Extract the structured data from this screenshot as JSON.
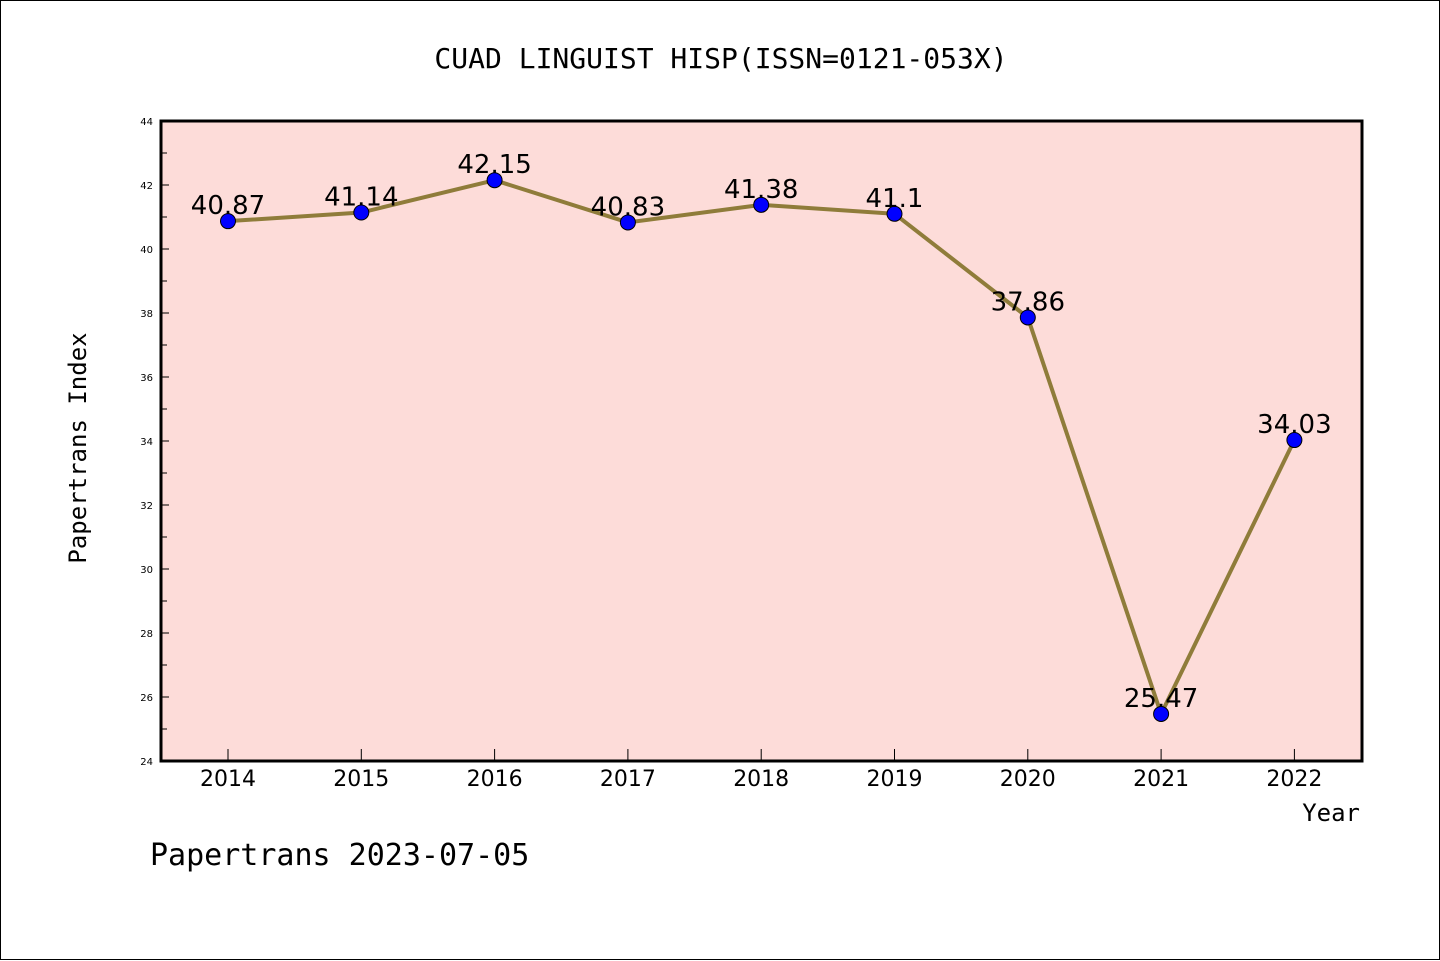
{
  "chart_data": {
    "type": "line",
    "title": "CUAD LINGUIST HISP(ISSN=0121-053X)",
    "xlabel": "Year",
    "ylabel": "Papertrans Index",
    "x": [
      "2014",
      "2015",
      "2016",
      "2017",
      "2018",
      "2019",
      "2020",
      "2021",
      "2022"
    ],
    "values": [
      40.87,
      41.14,
      42.15,
      40.83,
      41.38,
      41.1,
      37.86,
      25.47,
      34.03
    ],
    "data_labels": [
      "40.87",
      "41.14",
      "42.15",
      "40.83",
      "41.38",
      "41.1",
      "37.86",
      "25.47",
      "34.03"
    ],
    "ylim": [
      24,
      44
    ],
    "yticks": [
      "24",
      "26",
      "28",
      "30",
      "32",
      "34",
      "36",
      "38",
      "40",
      "42",
      "44"
    ],
    "grid": false,
    "legend": "none",
    "colors": {
      "plot_background": "#fddcd9",
      "line": "#8f7c3a",
      "marker": "#0000ff"
    }
  },
  "footer": "Papertrans 2023-07-05"
}
